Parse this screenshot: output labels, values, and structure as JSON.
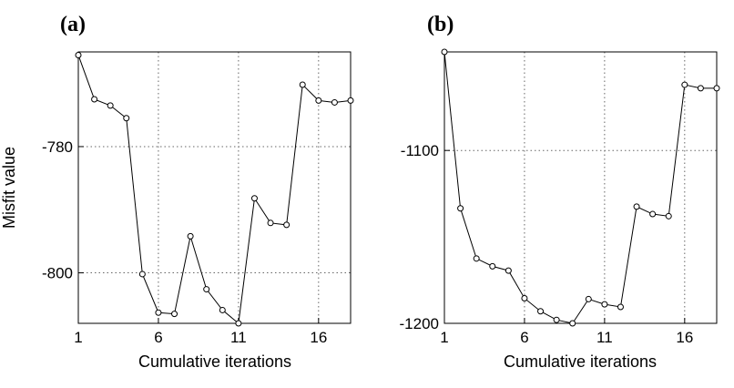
{
  "colors": {
    "line": "#000000",
    "grid": "#666666",
    "background": "#ffffff"
  },
  "chart_data": [
    {
      "type": "line",
      "panel_label": "(a)",
      "xlabel": "Cumulative iterations",
      "ylabel": "Misfit value",
      "xlim": [
        1,
        18
      ],
      "ylim": [
        -808,
        -765
      ],
      "grid": true,
      "x_ticks": [
        1,
        6,
        11,
        16
      ],
      "y_ticks": [
        -780,
        -800
      ],
      "x": [
        1,
        2,
        3,
        4,
        5,
        6,
        7,
        8,
        9,
        10,
        11,
        12,
        13,
        14,
        15,
        16,
        17,
        18
      ],
      "values": [
        -765.5,
        -772.5,
        -773.5,
        -775.5,
        -800.2,
        -806.3,
        -806.5,
        -794.2,
        -802.6,
        -805.9,
        -808,
        -788.2,
        -792.1,
        -792.4,
        -770.2,
        -772.7,
        -773.0,
        -772.7
      ]
    },
    {
      "type": "line",
      "panel_label": "(b)",
      "xlabel": "Cumulative iterations",
      "ylabel": "",
      "xlim": [
        1,
        18
      ],
      "ylim": [
        -1200,
        -1043
      ],
      "grid": true,
      "x_ticks": [
        1,
        6,
        11,
        16
      ],
      "y_ticks": [
        -1100,
        -1200
      ],
      "x": [
        1,
        2,
        3,
        4,
        5,
        6,
        7,
        8,
        9,
        10,
        11,
        12,
        13,
        14,
        15,
        16,
        17,
        18
      ],
      "values": [
        -1043,
        -1133.5,
        -1162.5,
        -1167.0,
        -1169.5,
        -1185.5,
        -1193.0,
        -1198.0,
        -1200.0,
        -1186.0,
        -1189.0,
        -1190.5,
        -1132.5,
        -1136.8,
        -1138.0,
        -1062.0,
        -1064.0,
        -1064.0
      ]
    }
  ]
}
